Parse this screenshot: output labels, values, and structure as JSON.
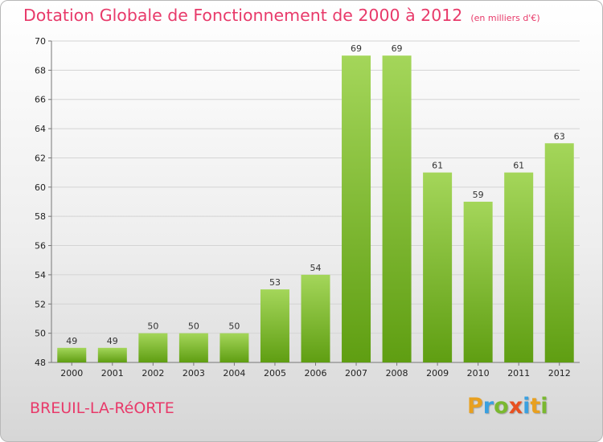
{
  "header": {
    "title": "Dotation Globale de Fonctionnement de 2000 à 2012",
    "subtitle": "(en milliers d'€)"
  },
  "footer": {
    "commune": "BREUIL-LA-RéORTE",
    "brand": "Proxiti",
    "brand_colors": [
      "#e8a020",
      "#3aa0e0",
      "#7ab830",
      "#e85020",
      "#3aa0e0",
      "#e8a020",
      "#7ab830"
    ]
  },
  "colors": {
    "bar_top": "#a4d65a",
    "bar_bottom": "#5f9e12",
    "grid": "#d4d4d4",
    "axis": "#777777",
    "accent": "#e83a6a"
  },
  "chart_data": {
    "type": "bar",
    "categories": [
      "2000",
      "2001",
      "2002",
      "2003",
      "2004",
      "2005",
      "2006",
      "2007",
      "2008",
      "2009",
      "2010",
      "2011",
      "2012"
    ],
    "values": [
      49,
      49,
      50,
      50,
      50,
      53,
      54,
      69,
      69,
      61,
      59,
      61,
      63
    ],
    "ylim": [
      48,
      70
    ],
    "yticks": [
      48,
      50,
      52,
      54,
      56,
      58,
      60,
      62,
      64,
      66,
      68,
      70
    ],
    "grid": true,
    "legend": "none"
  }
}
